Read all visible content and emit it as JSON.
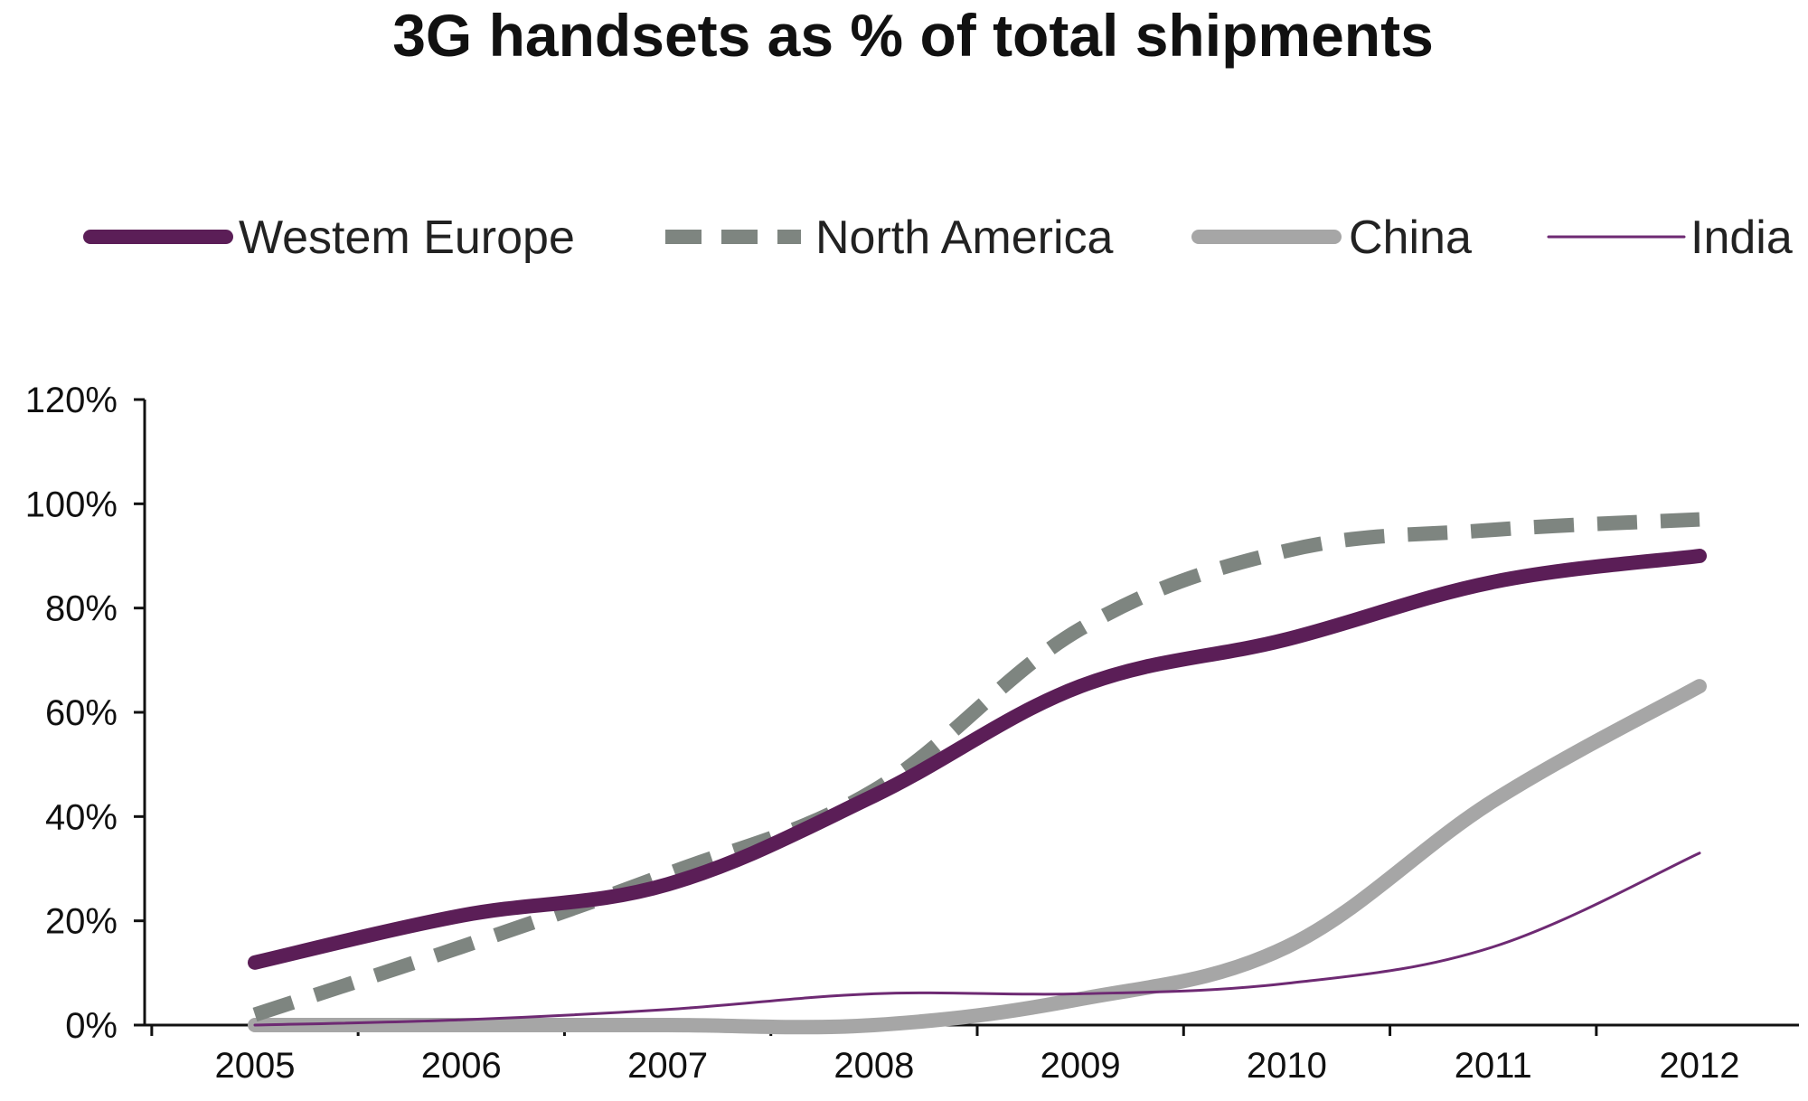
{
  "chart_data": {
    "type": "line",
    "title": "3G handsets as % of total shipments",
    "xlabel": "",
    "ylabel": "",
    "x": [
      "2005",
      "2006",
      "2007",
      "2008",
      "2009",
      "2010",
      "2011",
      "2012"
    ],
    "ylim": [
      0,
      120
    ],
    "yticks": [
      0,
      20,
      40,
      60,
      80,
      100,
      120
    ],
    "ytick_labels": [
      "0%",
      "20%",
      "40%",
      "60%",
      "80%",
      "100%",
      "120%"
    ],
    "grid": false,
    "legend_position": "top",
    "series": [
      {
        "name": "Westem Europe",
        "values": [
          12,
          21,
          27,
          44,
          65,
          74,
          85,
          90
        ],
        "color": "#5b1e57",
        "line_style": "solid-thick"
      },
      {
        "name": "North America",
        "values": [
          2,
          15,
          29,
          45,
          76,
          91,
          95,
          97
        ],
        "color": "#7e8580",
        "line_style": "dashed-thick"
      },
      {
        "name": "China",
        "values": [
          0,
          0,
          0,
          0,
          5,
          15,
          43,
          65
        ],
        "color": "#a6a6a6",
        "line_style": "solid-thick"
      },
      {
        "name": "India",
        "values": [
          0,
          1,
          3,
          6,
          6,
          8,
          15,
          33
        ],
        "color": "#6e2a73",
        "line_style": "solid-thin"
      }
    ]
  }
}
